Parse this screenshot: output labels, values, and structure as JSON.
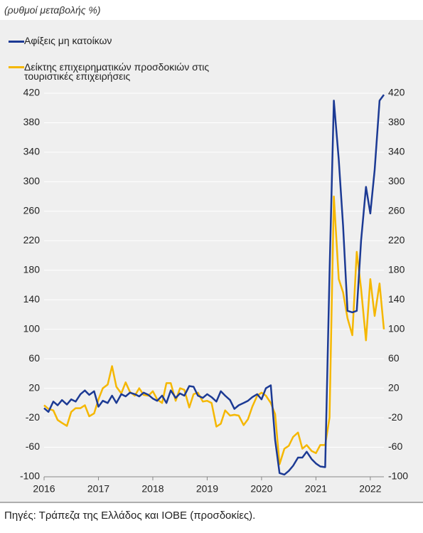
{
  "chart_data": {
    "type": "line",
    "subtitle": "(ρυθμοί μεταβολής %)",
    "source": "Πηγές: Τράπεζα της Ελλάδος και ΙΟΒΕ (προσδοκίες).",
    "x": [
      2016.0,
      2016.08,
      2016.17,
      2016.25,
      2016.33,
      2016.42,
      2016.5,
      2016.58,
      2016.67,
      2016.75,
      2016.83,
      2016.92,
      2017.0,
      2017.08,
      2017.17,
      2017.25,
      2017.33,
      2017.42,
      2017.5,
      2017.58,
      2017.67,
      2017.75,
      2017.83,
      2017.92,
      2018.0,
      2018.08,
      2018.17,
      2018.25,
      2018.33,
      2018.42,
      2018.5,
      2018.58,
      2018.67,
      2018.75,
      2018.83,
      2018.92,
      2019.0,
      2019.08,
      2019.17,
      2019.25,
      2019.33,
      2019.42,
      2019.5,
      2019.58,
      2019.67,
      2019.75,
      2019.83,
      2019.92,
      2020.0,
      2020.08,
      2020.17,
      2020.25,
      2020.33,
      2020.42,
      2020.5,
      2020.58,
      2020.67,
      2020.75,
      2020.83,
      2020.92,
      2021.0,
      2021.08,
      2021.17,
      2021.25,
      2021.33,
      2021.42,
      2021.5,
      2021.58,
      2021.67,
      2021.75,
      2021.83,
      2021.92,
      2022.0,
      2022.08,
      2022.17,
      2022.25
    ],
    "series": [
      {
        "name": "Αφίξεις μη κατοίκων",
        "color": "#1c3a94",
        "values": [
          -7,
          -12,
          2,
          -3,
          4,
          -2,
          5,
          2,
          12,
          17,
          11,
          16,
          -5,
          3,
          0,
          10,
          0,
          12,
          9,
          14,
          12,
          9,
          14,
          11,
          6,
          3,
          10,
          0,
          17,
          7,
          13,
          10,
          23,
          22,
          10,
          7,
          12,
          8,
          2,
          16,
          10,
          4,
          -8,
          -3,
          0,
          3,
          8,
          12,
          5,
          20,
          24,
          -50,
          -95,
          -97,
          -92,
          -85,
          -74,
          -74,
          -66,
          -76,
          -82,
          -86,
          -87,
          175,
          410,
          330,
          240,
          125,
          123,
          125,
          220,
          293,
          257,
          316,
          410,
          418
        ]
      },
      {
        "name": "Δείκτης επιχειρηματικών προσδοκιών στις τουριστικές επιχειρήσεις",
        "color": "#f5b700",
        "values": [
          -3,
          -8,
          -10,
          -23,
          -27,
          -31,
          -12,
          -7,
          -7,
          -3,
          -18,
          -14,
          5,
          20,
          25,
          50,
          22,
          13,
          28,
          15,
          10,
          20,
          11,
          10,
          16,
          5,
          0,
          27,
          27,
          3,
          20,
          18,
          -6,
          12,
          14,
          2,
          3,
          0,
          -32,
          -28,
          -10,
          -17,
          -16,
          -17,
          -30,
          -22,
          -5,
          10,
          14,
          10,
          0,
          -15,
          -83,
          -62,
          -58,
          -46,
          -40,
          -62,
          -57,
          -65,
          -68,
          -57,
          -57,
          -20,
          280,
          168,
          150,
          115,
          92,
          205,
          155,
          85,
          168,
          118,
          162,
          100
        ]
      }
    ],
    "xlim": [
      2016,
      2022.25
    ],
    "xticks": [
      2016,
      2017,
      2018,
      2019,
      2020,
      2021,
      2022
    ],
    "ylim": [
      -100,
      420
    ],
    "yticks": [
      -100,
      -60,
      -20,
      20,
      60,
      100,
      140,
      180,
      220,
      260,
      300,
      340,
      380,
      420
    ],
    "y2lim": [
      -100,
      420
    ],
    "y2ticks": [
      -100,
      -60,
      -20,
      20,
      60,
      100,
      140,
      180,
      220,
      260,
      300,
      340,
      380,
      420
    ],
    "grid": true
  }
}
